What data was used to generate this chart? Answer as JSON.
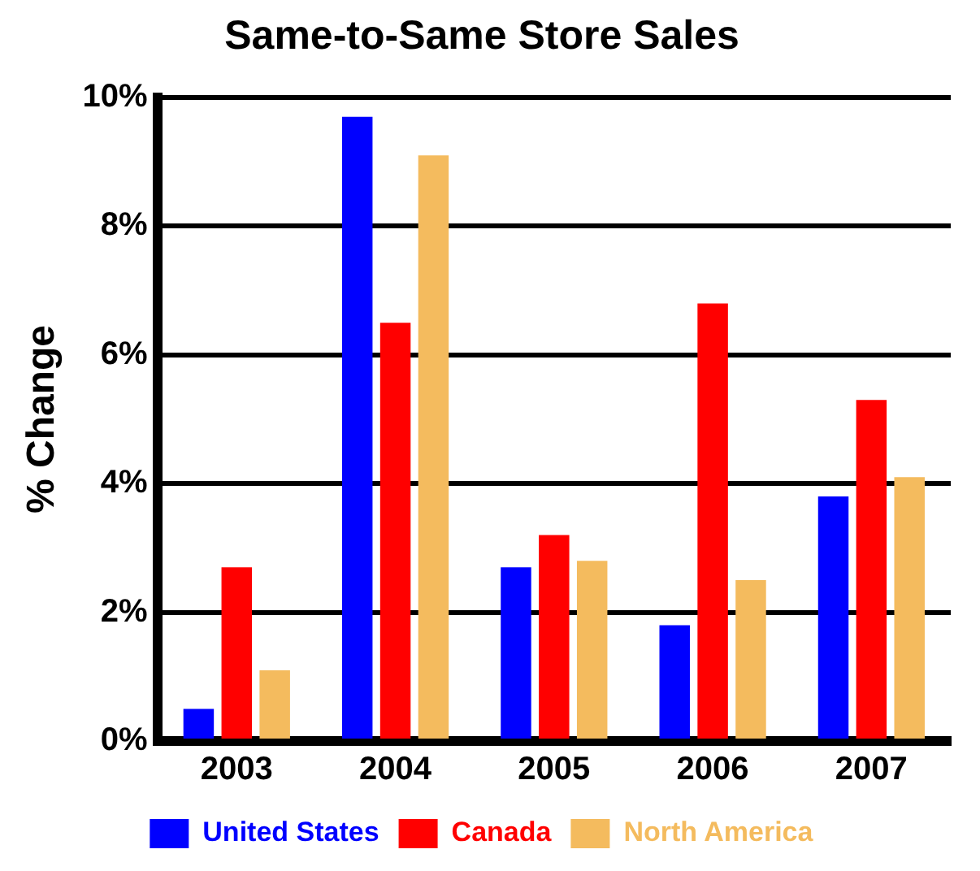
{
  "chart_data": {
    "type": "bar",
    "title": "Same-to-Same Store Sales",
    "ylabel": "% Change",
    "categories": [
      "2003",
      "2004",
      "2005",
      "2006",
      "2007"
    ],
    "series": [
      {
        "name": "United States",
        "color": "#0000ff",
        "values": [
          0.5,
          9.7,
          2.7,
          1.8,
          3.8
        ]
      },
      {
        "name": "Canada",
        "color": "#ff0000",
        "values": [
          2.7,
          6.5,
          3.2,
          6.8,
          5.3
        ]
      },
      {
        "name": "North America",
        "color": "#f4bb5e",
        "values": [
          1.1,
          9.1,
          2.8,
          2.5,
          4.1
        ]
      }
    ],
    "ylim": [
      0,
      10
    ],
    "yticks": [
      {
        "value": 0,
        "label": "0%"
      },
      {
        "value": 2,
        "label": "2%"
      },
      {
        "value": 4,
        "label": "4%"
      },
      {
        "value": 6,
        "label": "6%"
      },
      {
        "value": 8,
        "label": "8%"
      },
      {
        "value": 10,
        "label": "10%"
      }
    ],
    "grid": "y",
    "legend": "bottom"
  }
}
